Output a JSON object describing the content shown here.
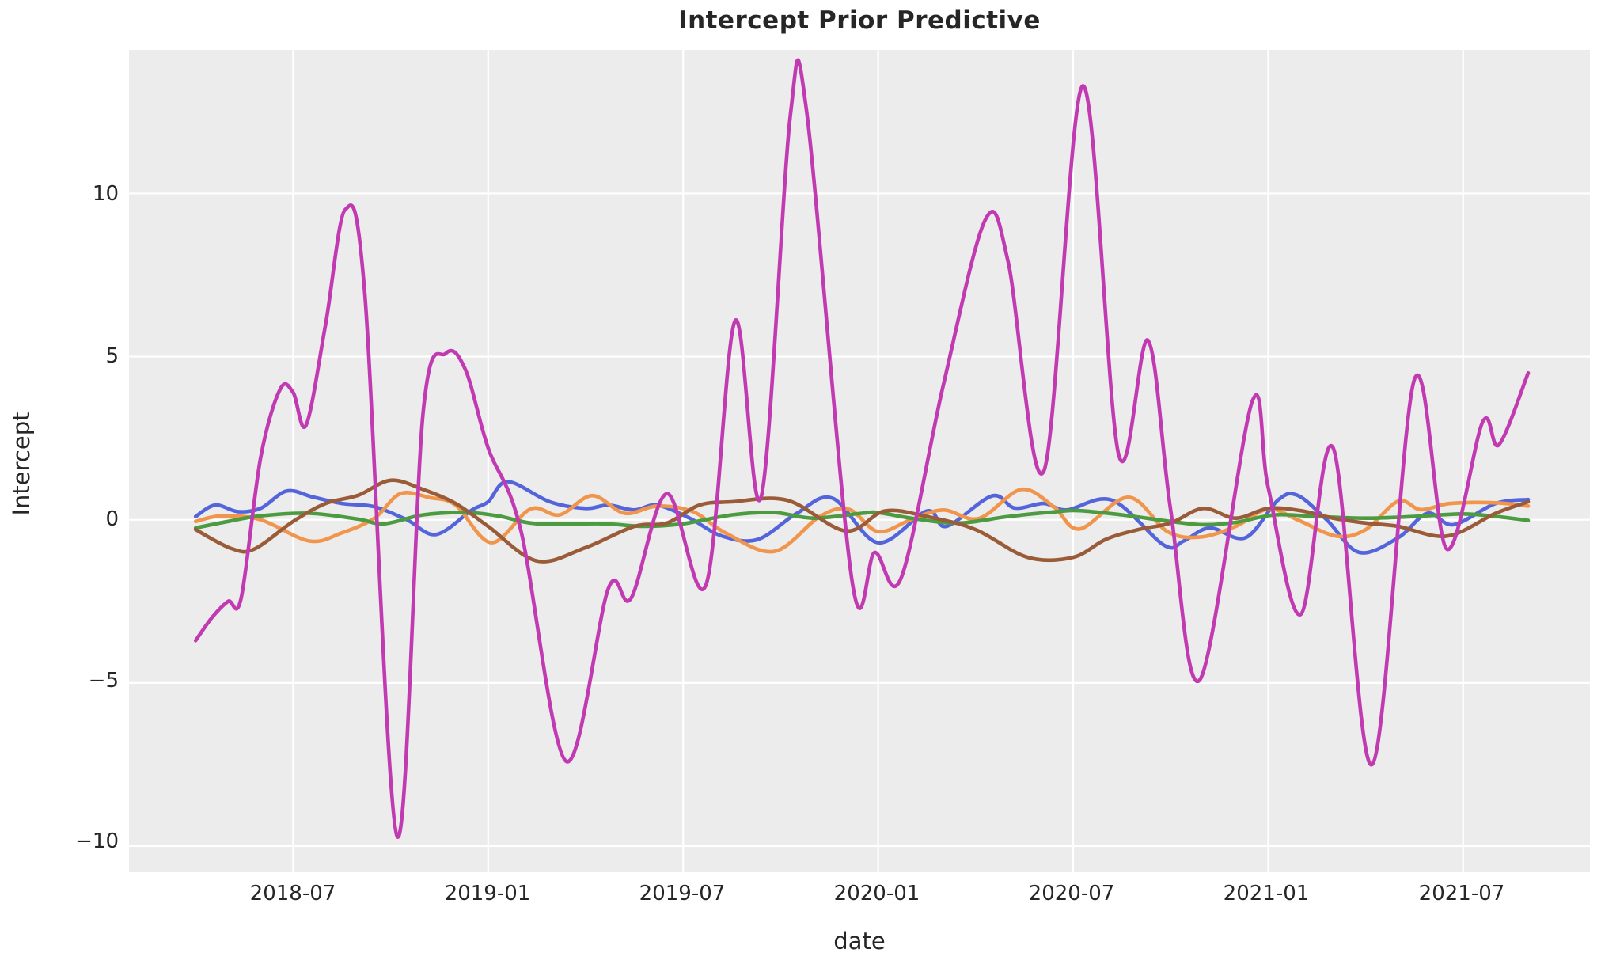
{
  "title": "Intercept Prior Predictive",
  "x_axis": {
    "label": "date",
    "ticks": [
      "2018-07",
      "2019-01",
      "2019-07",
      "2020-01",
      "2020-07",
      "2021-01",
      "2021-07"
    ]
  },
  "y_axis": {
    "label": "Intercept",
    "ticks": [
      "10",
      "5",
      "0",
      "−5",
      "−10"
    ]
  },
  "colors": {
    "plot_background": "#ececec",
    "grid": "#ffffff",
    "text": "#262626",
    "series_blue": "#5465db",
    "series_orange": "#f0954b",
    "series_green": "#4c9b41",
    "series_brown": "#9a5c38",
    "series_magenta": "#c13ab2"
  },
  "chart_data": {
    "type": "line",
    "title": "Intercept Prior Predictive",
    "xlabel": "date",
    "ylabel": "Intercept",
    "grid": true,
    "legend": "none",
    "x_unit": "months since 2018-04 (t=0 is 2018-04, data ends 2021-09)",
    "xlim_months": [
      -2.05,
      42.9
    ],
    "ylim": [
      -10.8,
      14.4
    ],
    "y_tick_values": [
      10,
      5,
      0,
      -5,
      -10
    ],
    "x_tick_months": [
      3,
      9,
      15,
      21,
      27,
      33,
      39
    ],
    "x_tick_labels": [
      "2018-07",
      "2019-01",
      "2019-07",
      "2020-01",
      "2020-07",
      "2021-01",
      "2021-07"
    ],
    "series": [
      {
        "name": "prior sample 1 (blue)",
        "color": "#5465db",
        "points": [
          [
            0,
            0.1
          ],
          [
            0.6,
            0.45
          ],
          [
            1.3,
            0.25
          ],
          [
            2,
            0.35
          ],
          [
            2.8,
            0.88
          ],
          [
            3.6,
            0.7
          ],
          [
            4.5,
            0.5
          ],
          [
            5.5,
            0.4
          ],
          [
            6.5,
            0.0
          ],
          [
            7.4,
            -0.45
          ],
          [
            8.5,
            0.3
          ],
          [
            9,
            0.55
          ],
          [
            9.6,
            1.17
          ],
          [
            10.9,
            0.55
          ],
          [
            12,
            0.35
          ],
          [
            12.7,
            0.45
          ],
          [
            13.5,
            0.3
          ],
          [
            14.2,
            0.45
          ],
          [
            15.2,
            0.05
          ],
          [
            16.2,
            -0.5
          ],
          [
            17.3,
            -0.6
          ],
          [
            18.5,
            0.2
          ],
          [
            19.6,
            0.66
          ],
          [
            21,
            -0.7
          ],
          [
            22.5,
            0.27
          ],
          [
            23.1,
            -0.2
          ],
          [
            24.5,
            0.73
          ],
          [
            25.2,
            0.36
          ],
          [
            26.1,
            0.5
          ],
          [
            26.8,
            0.3
          ],
          [
            28.2,
            0.6
          ],
          [
            29.8,
            -0.78
          ],
          [
            30.4,
            -0.65
          ],
          [
            31.2,
            -0.25
          ],
          [
            32.3,
            -0.55
          ],
          [
            33.3,
            0.6
          ],
          [
            33.9,
            0.75
          ],
          [
            34.8,
            0.0
          ],
          [
            35.8,
            -1.0
          ],
          [
            37,
            -0.55
          ],
          [
            37.9,
            0.2
          ],
          [
            38.7,
            -0.15
          ],
          [
            40,
            0.5
          ],
          [
            41,
            0.62
          ]
        ]
      },
      {
        "name": "prior sample 2 (orange)",
        "color": "#f0954b",
        "points": [
          [
            0,
            -0.05
          ],
          [
            0.8,
            0.12
          ],
          [
            2,
            0.0
          ],
          [
            3.5,
            -0.65
          ],
          [
            4.5,
            -0.4
          ],
          [
            5.5,
            0.05
          ],
          [
            6.3,
            0.8
          ],
          [
            7.2,
            0.68
          ],
          [
            8,
            0.45
          ],
          [
            9.1,
            -0.7
          ],
          [
            10.3,
            0.33
          ],
          [
            11.2,
            0.15
          ],
          [
            12.2,
            0.74
          ],
          [
            13.2,
            0.2
          ],
          [
            14.2,
            0.42
          ],
          [
            15.3,
            0.25
          ],
          [
            16.3,
            -0.4
          ],
          [
            17.8,
            -0.97
          ],
          [
            19.2,
            0.1
          ],
          [
            20.1,
            0.32
          ],
          [
            21,
            -0.36
          ],
          [
            22,
            0.0
          ],
          [
            23,
            0.3
          ],
          [
            24.1,
            0.04
          ],
          [
            25.4,
            0.93
          ],
          [
            26.4,
            0.4
          ],
          [
            27.2,
            -0.28
          ],
          [
            28.7,
            0.69
          ],
          [
            29.9,
            -0.36
          ],
          [
            30.9,
            -0.53
          ],
          [
            32,
            -0.2
          ],
          [
            33,
            0.33
          ],
          [
            33.9,
            0.0
          ],
          [
            35.1,
            -0.5
          ],
          [
            36,
            -0.3
          ],
          [
            37,
            0.57
          ],
          [
            37.7,
            0.31
          ],
          [
            38.6,
            0.5
          ],
          [
            40,
            0.52
          ],
          [
            41,
            0.42
          ]
        ]
      },
      {
        "name": "prior sample 3 (green)",
        "color": "#4c9b41",
        "points": [
          [
            0,
            -0.25
          ],
          [
            1,
            -0.05
          ],
          [
            2,
            0.12
          ],
          [
            3.5,
            0.2
          ],
          [
            5,
            0.02
          ],
          [
            5.8,
            -0.12
          ],
          [
            7,
            0.15
          ],
          [
            8.3,
            0.22
          ],
          [
            9.3,
            0.12
          ],
          [
            10.5,
            -0.12
          ],
          [
            12.5,
            -0.12
          ],
          [
            13.8,
            -0.2
          ],
          [
            15,
            -0.12
          ],
          [
            16.5,
            0.15
          ],
          [
            17.8,
            0.22
          ],
          [
            19,
            0.05
          ],
          [
            20.5,
            0.2
          ],
          [
            21,
            0.22
          ],
          [
            22.2,
            0.02
          ],
          [
            23.5,
            -0.1
          ],
          [
            25,
            0.1
          ],
          [
            26.5,
            0.25
          ],
          [
            27.2,
            0.28
          ],
          [
            28.5,
            0.15
          ],
          [
            30,
            -0.05
          ],
          [
            31,
            -0.15
          ],
          [
            32,
            -0.08
          ],
          [
            33.2,
            0.15
          ],
          [
            34.5,
            0.1
          ],
          [
            36,
            0.05
          ],
          [
            37.5,
            0.1
          ],
          [
            39,
            0.18
          ],
          [
            40.2,
            0.08
          ],
          [
            41,
            -0.02
          ]
        ]
      },
      {
        "name": "prior sample 4 (brown)",
        "color": "#9a5c38",
        "points": [
          [
            0,
            -0.3
          ],
          [
            1.1,
            -0.88
          ],
          [
            1.8,
            -0.9
          ],
          [
            3,
            -0.05
          ],
          [
            4,
            0.5
          ],
          [
            5,
            0.75
          ],
          [
            6,
            1.21
          ],
          [
            7,
            0.93
          ],
          [
            8,
            0.5
          ],
          [
            9,
            -0.2
          ],
          [
            10.5,
            -1.26
          ],
          [
            12,
            -0.85
          ],
          [
            13.5,
            -0.2
          ],
          [
            14.5,
            -0.1
          ],
          [
            15.5,
            0.45
          ],
          [
            16.5,
            0.55
          ],
          [
            18.2,
            0.6
          ],
          [
            20,
            -0.34
          ],
          [
            21.2,
            0.27
          ],
          [
            22.5,
            0.1
          ],
          [
            24,
            -0.3
          ],
          [
            25.6,
            -1.15
          ],
          [
            27,
            -1.15
          ],
          [
            28,
            -0.6
          ],
          [
            29,
            -0.3
          ],
          [
            30,
            -0.1
          ],
          [
            31,
            0.35
          ],
          [
            32,
            0.05
          ],
          [
            33,
            0.35
          ],
          [
            34,
            0.28
          ],
          [
            35,
            0.05
          ],
          [
            36,
            -0.1
          ],
          [
            37,
            -0.2
          ],
          [
            38.5,
            -0.5
          ],
          [
            40,
            0.2
          ],
          [
            41,
            0.55
          ]
        ]
      },
      {
        "name": "prior sample 5 (magenta)",
        "color": "#c13ab2",
        "points": [
          [
            0,
            -3.7
          ],
          [
            0.5,
            -3.0
          ],
          [
            1,
            -2.5
          ],
          [
            1.4,
            -2.4
          ],
          [
            2,
            1.9
          ],
          [
            2.6,
            4.0
          ],
          [
            3,
            3.9
          ],
          [
            3.4,
            2.9
          ],
          [
            4,
            6.0
          ],
          [
            4.6,
            9.5
          ],
          [
            5.2,
            7.0
          ],
          [
            6.2,
            -9.7
          ],
          [
            7,
            3.3
          ],
          [
            7.7,
            5.1
          ],
          [
            8.3,
            4.6
          ],
          [
            9,
            2.2
          ],
          [
            10,
            -0.3
          ],
          [
            11.4,
            -7.4
          ],
          [
            12.7,
            -2.1
          ],
          [
            13.4,
            -2.4
          ],
          [
            14.5,
            0.8
          ],
          [
            15.7,
            -2.0
          ],
          [
            16.6,
            6.1
          ],
          [
            17.4,
            0.7
          ],
          [
            18.3,
            12.4
          ],
          [
            18.8,
            12.5
          ],
          [
            20.2,
            -1.9
          ],
          [
            20.9,
            -1.0
          ],
          [
            21.7,
            -1.8
          ],
          [
            23,
            4.1
          ],
          [
            24.3,
            9.2
          ],
          [
            25,
            7.9
          ],
          [
            26.1,
            1.5
          ],
          [
            27.3,
            13.3
          ],
          [
            28.4,
            2.0
          ],
          [
            29.3,
            5.5
          ],
          [
            30,
            0.3
          ],
          [
            30.9,
            -4.9
          ],
          [
            32.5,
            3.6
          ],
          [
            33,
            1.0
          ],
          [
            34,
            -2.9
          ],
          [
            35,
            2.2
          ],
          [
            36.2,
            -7.5
          ],
          [
            37.5,
            4.3
          ],
          [
            38.5,
            -0.9
          ],
          [
            39.6,
            3.0
          ],
          [
            40.1,
            2.3
          ],
          [
            41,
            4.5
          ]
        ]
      }
    ]
  },
  "layout_note": ""
}
